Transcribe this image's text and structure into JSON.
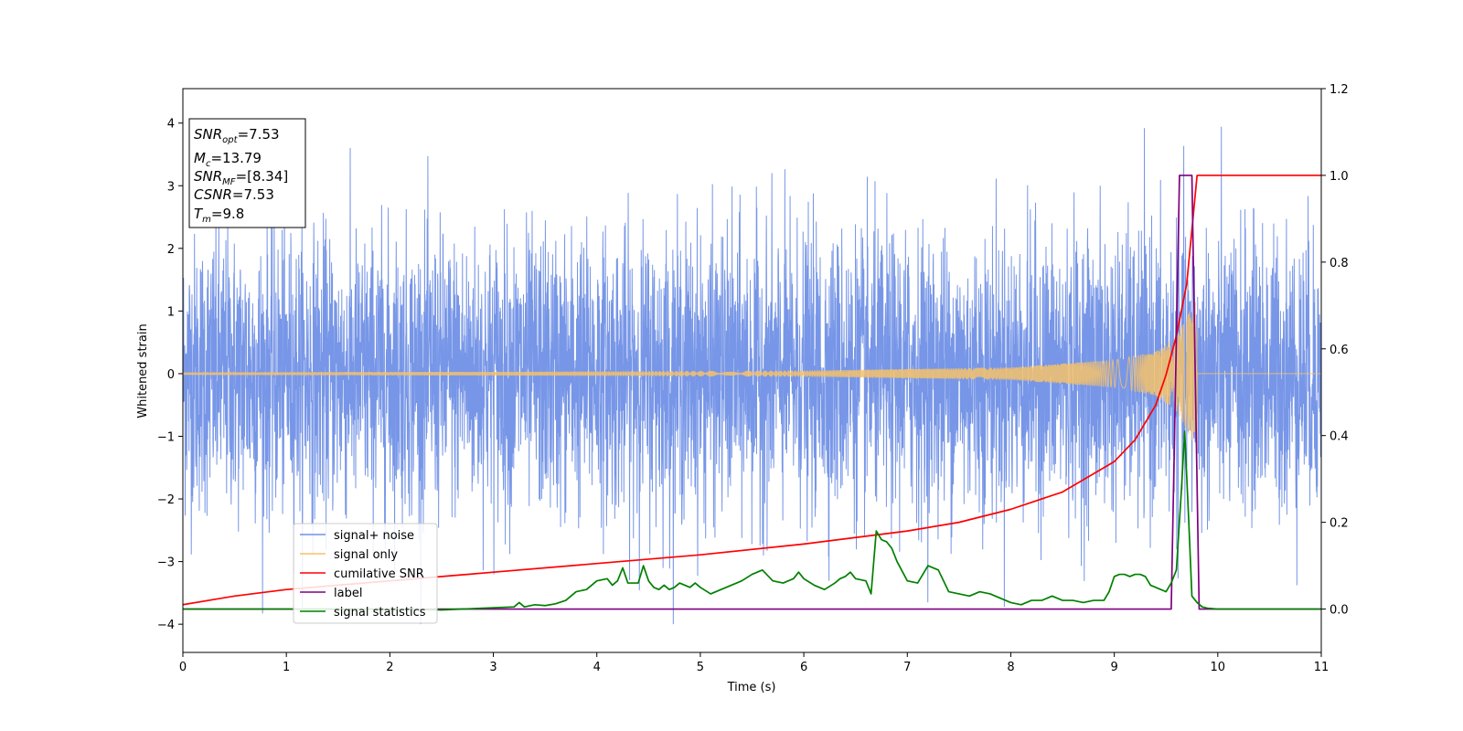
{
  "chart_data": {
    "type": "line",
    "xlabel": "Time (s)",
    "ylabel": "Whitened strain",
    "xlim": [
      0,
      11
    ],
    "ylim": [
      -4.45,
      4.55
    ],
    "y2lim": [
      -0.1,
      1.2
    ],
    "x_ticks": [
      0,
      1,
      2,
      3,
      4,
      5,
      6,
      7,
      8,
      9,
      10,
      11
    ],
    "y_ticks": [
      -4,
      -3,
      -2,
      -1,
      0,
      1,
      2,
      3,
      4
    ],
    "y2_ticks": [
      0.0,
      0.2,
      0.4,
      0.6,
      0.8,
      1.0,
      1.2
    ],
    "grid": false,
    "legend_position": "lower-left",
    "annotation": {
      "snr_opt": {
        "base": "SNR",
        "sub": "opt",
        "rest": "=7.53"
      },
      "mc": {
        "base": "M",
        "sub": "c",
        "rest": "=13.79"
      },
      "snr_mf": {
        "base": "SNR",
        "sub": "MF",
        "rest": "=[8.34]"
      },
      "csnr": {
        "base": "CSNR",
        "sub": "",
        "rest": "=7.53"
      },
      "tm": {
        "base": "T",
        "sub": "m",
        "rest": "=9.8"
      }
    },
    "series": [
      {
        "name": "signal+ noise",
        "color": "#7090e6",
        "axis": "left",
        "description_values": {
          "amplitude_std": 1.1,
          "peak_max": 4.15,
          "peak_min": -4.0
        }
      },
      {
        "name": "signal only",
        "color": "#f5c26b",
        "axis": "left",
        "envelope": {
          "x": [
            0,
            3,
            6,
            8,
            9,
            9.4,
            9.6,
            9.7,
            9.8
          ],
          "amp": [
            0.02,
            0.03,
            0.05,
            0.1,
            0.22,
            0.35,
            0.6,
            0.9,
            1.25
          ]
        },
        "merger_time": 9.8
      },
      {
        "name": "cumilative SNR",
        "color": "#ff0000",
        "axis": "right",
        "x": [
          0,
          0.5,
          1,
          2,
          3,
          4,
          5,
          6,
          6.5,
          7,
          7.5,
          8,
          8.5,
          9,
          9.2,
          9.4,
          9.5,
          9.6,
          9.7,
          9.8,
          11
        ],
        "y": [
          0.01,
          0.03,
          0.045,
          0.065,
          0.085,
          0.105,
          0.125,
          0.15,
          0.165,
          0.18,
          0.2,
          0.23,
          0.27,
          0.34,
          0.39,
          0.47,
          0.54,
          0.63,
          0.75,
          1.0,
          1.0
        ]
      },
      {
        "name": "label",
        "color": "#800080",
        "axis": "right",
        "x": [
          0,
          9.55,
          9.63,
          9.75,
          9.82,
          11
        ],
        "y": [
          0,
          0,
          1,
          1,
          0,
          0
        ]
      },
      {
        "name": "signal statistics",
        "color": "#008000",
        "axis": "right",
        "x": [
          0,
          1,
          2,
          2.5,
          3,
          3.2,
          3.25,
          3.3,
          3.4,
          3.5,
          3.6,
          3.7,
          3.8,
          3.9,
          4.0,
          4.1,
          4.15,
          4.2,
          4.25,
          4.3,
          4.35,
          4.4,
          4.45,
          4.5,
          4.55,
          4.6,
          4.65,
          4.7,
          4.75,
          4.8,
          4.85,
          4.9,
          4.95,
          5.0,
          5.1,
          5.2,
          5.3,
          5.4,
          5.5,
          5.6,
          5.7,
          5.8,
          5.9,
          5.95,
          6.0,
          6.1,
          6.2,
          6.3,
          6.35,
          6.4,
          6.45,
          6.5,
          6.6,
          6.65,
          6.7,
          6.75,
          6.8,
          6.85,
          6.9,
          7.0,
          7.1,
          7.2,
          7.3,
          7.4,
          7.5,
          7.6,
          7.7,
          7.8,
          7.9,
          8.0,
          8.1,
          8.2,
          8.3,
          8.4,
          8.5,
          8.6,
          8.7,
          8.8,
          8.9,
          8.95,
          9.0,
          9.05,
          9.1,
          9.15,
          9.2,
          9.25,
          9.3,
          9.35,
          9.4,
          9.5,
          9.55,
          9.6,
          9.65,
          9.68,
          9.72,
          9.75,
          9.8,
          9.85,
          9.9,
          10,
          11
        ],
        "y": [
          0,
          0,
          0,
          -0.002,
          0.003,
          0.005,
          0.015,
          0.005,
          0.01,
          0.008,
          0.012,
          0.02,
          0.04,
          0.045,
          0.065,
          0.07,
          0.055,
          0.065,
          0.095,
          0.06,
          0.06,
          0.06,
          0.1,
          0.065,
          0.05,
          0.045,
          0.055,
          0.045,
          0.05,
          0.06,
          0.055,
          0.05,
          0.06,
          0.05,
          0.035,
          0.045,
          0.055,
          0.065,
          0.08,
          0.09,
          0.065,
          0.06,
          0.07,
          0.085,
          0.07,
          0.055,
          0.045,
          0.06,
          0.07,
          0.075,
          0.085,
          0.07,
          0.065,
          0.035,
          0.18,
          0.16,
          0.155,
          0.14,
          0.11,
          0.065,
          0.06,
          0.1,
          0.09,
          0.04,
          0.035,
          0.03,
          0.04,
          0.035,
          0.025,
          0.015,
          0.01,
          0.02,
          0.02,
          0.03,
          0.02,
          0.02,
          0.015,
          0.02,
          0.02,
          0.04,
          0.075,
          0.08,
          0.08,
          0.075,
          0.08,
          0.08,
          0.075,
          0.055,
          0.05,
          0.04,
          0.06,
          0.09,
          0.28,
          0.41,
          0.2,
          0.03,
          0.015,
          0.005,
          0.002,
          0,
          0
        ]
      }
    ]
  }
}
